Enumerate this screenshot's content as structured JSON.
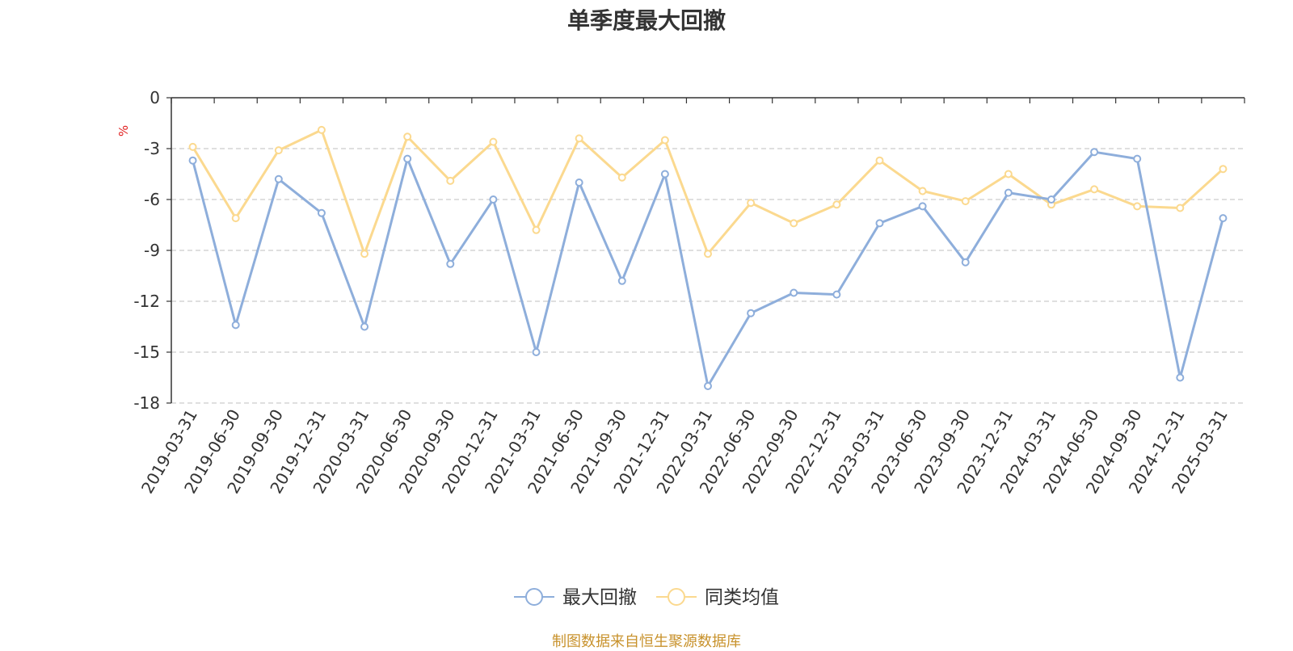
{
  "chart_data": {
    "type": "line",
    "title": "单季度最大回撤",
    "ylabel": "%",
    "xlabel": "",
    "ylim": [
      -18,
      0
    ],
    "yticks": [
      0,
      -3,
      -6,
      -9,
      -12,
      -15,
      -18
    ],
    "grid": true,
    "legend_position": "bottom",
    "categories": [
      "2019-03-31",
      "2019-06-30",
      "2019-09-30",
      "2019-12-31",
      "2020-03-31",
      "2020-06-30",
      "2020-09-30",
      "2020-12-31",
      "2021-03-31",
      "2021-06-30",
      "2021-09-30",
      "2021-12-31",
      "2022-03-31",
      "2022-06-30",
      "2022-09-30",
      "2022-12-31",
      "2023-03-31",
      "2023-06-30",
      "2023-09-30",
      "2023-12-31",
      "2024-03-31",
      "2024-06-30",
      "2024-09-30",
      "2024-12-31",
      "2025-03-31"
    ],
    "series": [
      {
        "name": "最大回撤",
        "color": "#8eaedb",
        "values": [
          -3.7,
          -13.4,
          -4.8,
          -6.8,
          -13.5,
          -3.6,
          -9.8,
          -6.0,
          -15.0,
          -5.0,
          -10.8,
          -4.5,
          -17.0,
          -12.7,
          -11.5,
          -11.6,
          -7.4,
          -6.4,
          -9.7,
          -5.6,
          -6.0,
          -3.2,
          -3.6,
          -16.5,
          -7.1
        ]
      },
      {
        "name": "同类均值",
        "color": "#fbd98f",
        "values": [
          -2.9,
          -7.1,
          -3.1,
          -1.9,
          -9.2,
          -2.3,
          -4.9,
          -2.6,
          -7.8,
          -2.4,
          -4.7,
          -2.5,
          -9.2,
          -6.2,
          -7.4,
          -6.3,
          -3.7,
          -5.5,
          -6.1,
          -4.5,
          -6.3,
          -5.4,
          -6.4,
          -6.5,
          -4.2
        ]
      }
    ]
  },
  "source_text": "制图数据来自恒生聚源数据库"
}
